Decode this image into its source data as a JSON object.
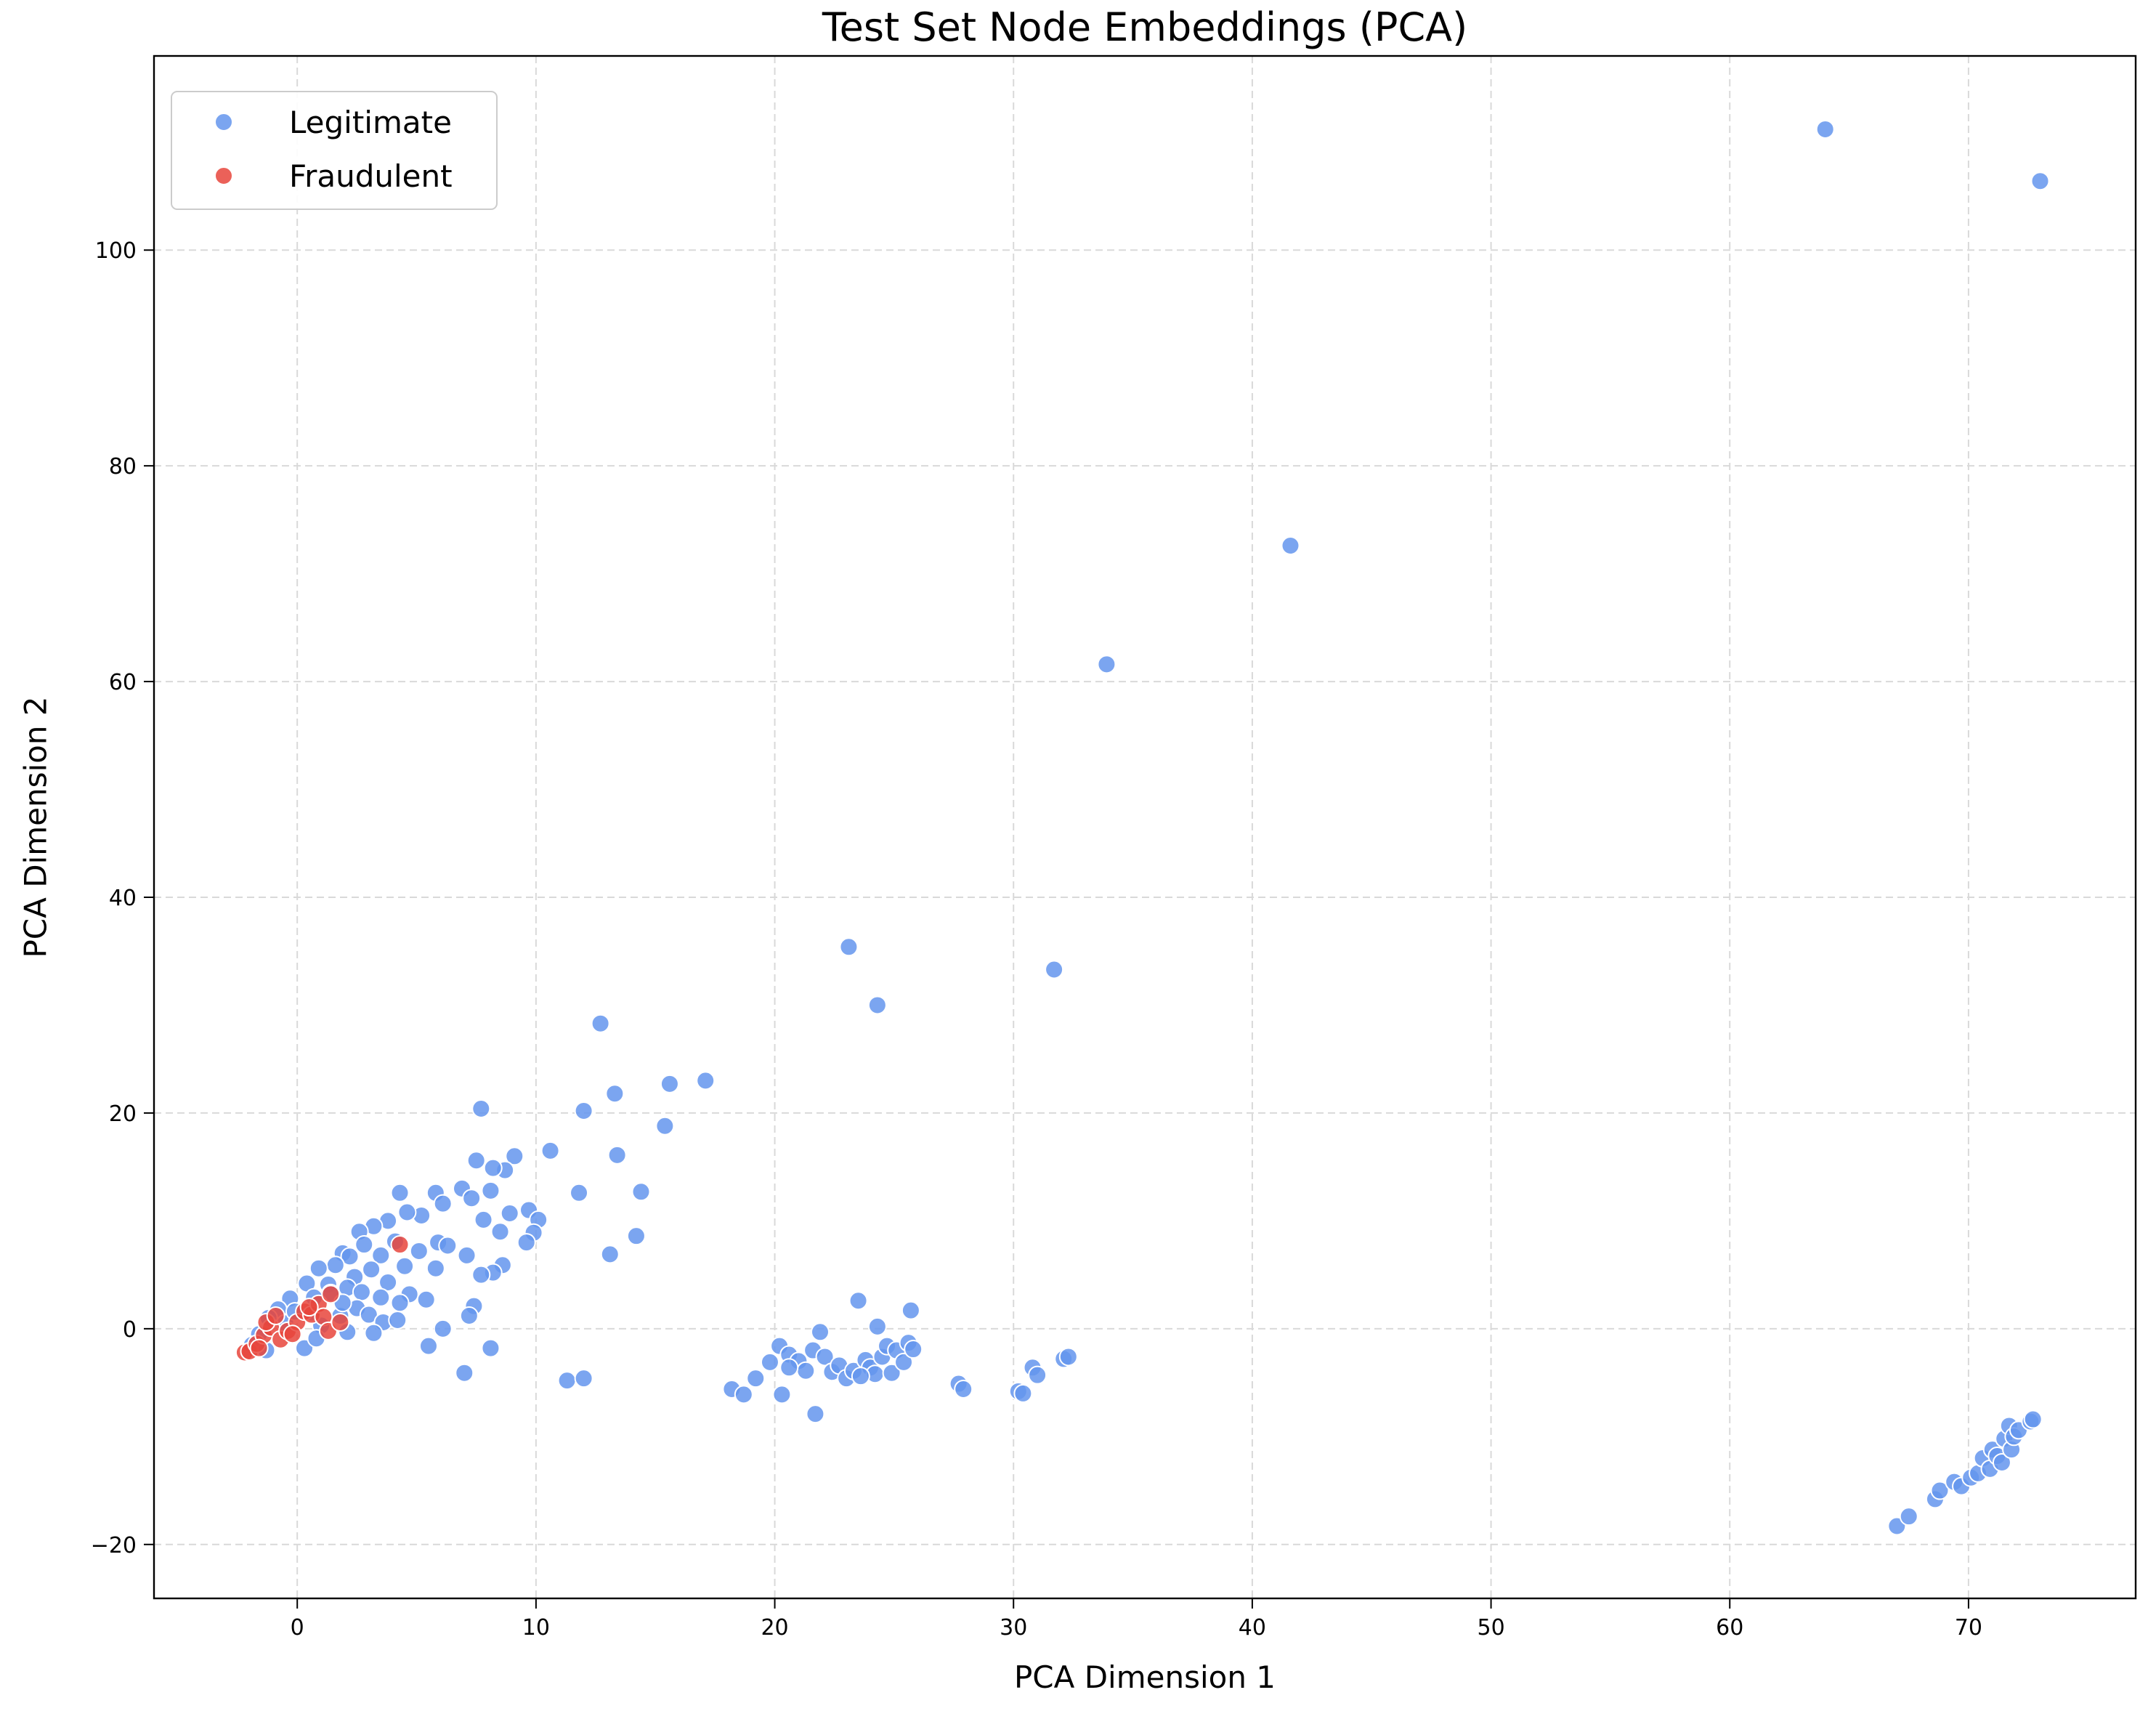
{
  "chart_data": {
    "type": "scatter",
    "title": "Test Set Node Embeddings (PCA)",
    "xlabel": "PCA Dimension 1",
    "ylabel": "PCA Dimension 2",
    "xlim": [
      -6,
      77
    ],
    "ylim": [
      -25,
      118
    ],
    "xticks": [
      0,
      10,
      20,
      30,
      40,
      50,
      60,
      70
    ],
    "yticks": [
      -20,
      0,
      20,
      40,
      60,
      80,
      100
    ],
    "grid": true,
    "legend_position": "top-left",
    "series": [
      {
        "name": "Legitimate",
        "color": "#6495ED",
        "points": [
          [
            64.0,
            111.2
          ],
          [
            73.0,
            106.4
          ],
          [
            41.6,
            72.6
          ],
          [
            33.9,
            61.6
          ],
          [
            23.1,
            35.4
          ],
          [
            31.7,
            33.3
          ],
          [
            24.3,
            30.0
          ],
          [
            12.7,
            28.3
          ],
          [
            17.1,
            23.0
          ],
          [
            15.6,
            22.7
          ],
          [
            13.3,
            21.8
          ],
          [
            12.0,
            20.2
          ],
          [
            7.7,
            20.4
          ],
          [
            15.4,
            18.8
          ],
          [
            10.6,
            16.5
          ],
          [
            9.1,
            16.0
          ],
          [
            13.4,
            16.1
          ],
          [
            7.5,
            15.6
          ],
          [
            8.7,
            14.7
          ],
          [
            8.2,
            14.9
          ],
          [
            14.4,
            12.7
          ],
          [
            11.8,
            12.6
          ],
          [
            5.8,
            12.6
          ],
          [
            4.3,
            12.6
          ],
          [
            6.9,
            13.0
          ],
          [
            7.3,
            12.1
          ],
          [
            8.1,
            12.8
          ],
          [
            6.1,
            11.6
          ],
          [
            8.9,
            10.7
          ],
          [
            9.7,
            11.0
          ],
          [
            10.1,
            10.1
          ],
          [
            7.8,
            10.1
          ],
          [
            5.2,
            10.5
          ],
          [
            4.6,
            10.8
          ],
          [
            3.8,
            10.0
          ],
          [
            3.2,
            9.5
          ],
          [
            2.6,
            9.0
          ],
          [
            9.9,
            8.9
          ],
          [
            8.5,
            9.0
          ],
          [
            14.2,
            8.6
          ],
          [
            5.9,
            8.0
          ],
          [
            6.3,
            7.7
          ],
          [
            2.8,
            7.8
          ],
          [
            4.1,
            8.1
          ],
          [
            1.9,
            7.0
          ],
          [
            5.1,
            7.2
          ],
          [
            3.5,
            6.8
          ],
          [
            2.2,
            6.7
          ],
          [
            7.1,
            6.8
          ],
          [
            13.1,
            6.9
          ],
          [
            9.6,
            8.0
          ],
          [
            8.6,
            5.9
          ],
          [
            8.2,
            5.2
          ],
          [
            7.7,
            5.0
          ],
          [
            5.8,
            5.6
          ],
          [
            4.5,
            5.8
          ],
          [
            3.1,
            5.5
          ],
          [
            1.6,
            5.9
          ],
          [
            0.9,
            5.6
          ],
          [
            2.4,
            4.8
          ],
          [
            3.8,
            4.3
          ],
          [
            0.4,
            4.2
          ],
          [
            1.3,
            4.1
          ],
          [
            2.1,
            3.8
          ],
          [
            4.7,
            3.2
          ],
          [
            3.5,
            2.9
          ],
          [
            2.7,
            3.4
          ],
          [
            5.4,
            2.7
          ],
          [
            4.3,
            2.4
          ],
          [
            1.4,
            3.3
          ],
          [
            0.7,
            2.9
          ],
          [
            -0.3,
            2.8
          ],
          [
            2.5,
            1.9
          ],
          [
            1.8,
            1.2
          ],
          [
            3.0,
            1.3
          ],
          [
            7.4,
            2.1
          ],
          [
            7.2,
            1.2
          ],
          [
            3.6,
            0.6
          ],
          [
            4.2,
            0.8
          ],
          [
            6.1,
            0.0
          ],
          [
            3.2,
            -0.4
          ],
          [
            2.1,
            -0.3
          ],
          [
            0.3,
            -1.8
          ],
          [
            5.5,
            -1.6
          ],
          [
            8.1,
            -1.8
          ],
          [
            7.0,
            -4.1
          ],
          [
            11.3,
            -4.8
          ],
          [
            12.0,
            -4.6
          ],
          [
            -0.8,
            1.8
          ],
          [
            -1.2,
            1.0
          ],
          [
            -0.5,
            0.5
          ],
          [
            0.6,
            1.5
          ],
          [
            1.0,
            0.3
          ],
          [
            -1.6,
            -0.5
          ],
          [
            -1.9,
            -1.5
          ],
          [
            -1.3,
            -2.0
          ],
          [
            0.8,
            -0.9
          ],
          [
            1.9,
            2.4
          ],
          [
            -0.1,
            1.6
          ],
          [
            18.2,
            -5.6
          ],
          [
            18.7,
            -6.1
          ],
          [
            19.2,
            -4.6
          ],
          [
            19.8,
            -3.1
          ],
          [
            20.2,
            -1.6
          ],
          [
            20.3,
            -6.1
          ],
          [
            20.6,
            -2.4
          ],
          [
            21.0,
            -3.0
          ],
          [
            21.3,
            -3.9
          ],
          [
            21.6,
            -2.0
          ],
          [
            21.9,
            -0.3
          ],
          [
            21.7,
            -7.9
          ],
          [
            22.1,
            -2.6
          ],
          [
            22.4,
            -4.0
          ],
          [
            22.7,
            -3.4
          ],
          [
            23.0,
            -4.6
          ],
          [
            23.3,
            -3.9
          ],
          [
            23.5,
            2.6
          ],
          [
            23.8,
            -2.9
          ],
          [
            24.0,
            -3.6
          ],
          [
            24.2,
            -4.2
          ],
          [
            24.3,
            0.2
          ],
          [
            24.5,
            -2.6
          ],
          [
            24.7,
            -1.6
          ],
          [
            24.9,
            -4.1
          ],
          [
            25.1,
            -2.0
          ],
          [
            25.4,
            -3.1
          ],
          [
            25.6,
            -1.3
          ],
          [
            25.7,
            1.7
          ],
          [
            25.8,
            -1.9
          ],
          [
            27.7,
            -5.1
          ],
          [
            27.9,
            -5.6
          ],
          [
            30.2,
            -5.8
          ],
          [
            30.4,
            -6.0
          ],
          [
            30.8,
            -3.6
          ],
          [
            31.0,
            -4.3
          ],
          [
            32.1,
            -2.8
          ],
          [
            32.3,
            -2.6
          ],
          [
            20.6,
            -3.6
          ],
          [
            23.6,
            -4.4
          ],
          [
            67.0,
            -18.3
          ],
          [
            67.5,
            -17.4
          ],
          [
            68.6,
            -15.8
          ],
          [
            68.8,
            -15.0
          ],
          [
            69.4,
            -14.2
          ],
          [
            69.7,
            -14.6
          ],
          [
            70.1,
            -13.8
          ],
          [
            70.4,
            -13.4
          ],
          [
            70.6,
            -12.0
          ],
          [
            70.9,
            -13.0
          ],
          [
            71.0,
            -11.2
          ],
          [
            71.2,
            -11.8
          ],
          [
            71.4,
            -12.4
          ],
          [
            71.5,
            -10.2
          ],
          [
            71.7,
            -9.0
          ],
          [
            71.8,
            -11.2
          ],
          [
            71.9,
            -10.0
          ],
          [
            72.1,
            -9.4
          ],
          [
            72.6,
            -8.6
          ],
          [
            72.7,
            -8.4
          ]
        ]
      },
      {
        "name": "Fraudulent",
        "color": "#E8453C",
        "points": [
          [
            -2.2,
            -2.2
          ],
          [
            -2.0,
            -2.1
          ],
          [
            -1.7,
            -1.4
          ],
          [
            -1.4,
            -0.6
          ],
          [
            -1.1,
            0.1
          ],
          [
            -1.3,
            0.6
          ],
          [
            -0.9,
            1.2
          ],
          [
            -0.7,
            -1.0
          ],
          [
            -0.4,
            -0.2
          ],
          [
            0.0,
            0.6
          ],
          [
            0.3,
            1.6
          ],
          [
            0.6,
            1.3
          ],
          [
            0.9,
            2.3
          ],
          [
            1.1,
            1.1
          ],
          [
            1.4,
            3.2
          ],
          [
            1.3,
            -0.2
          ],
          [
            1.8,
            0.6
          ],
          [
            -0.2,
            -0.5
          ],
          [
            -1.6,
            -1.8
          ],
          [
            0.5,
            2.0
          ],
          [
            4.3,
            7.8
          ]
        ]
      }
    ]
  }
}
